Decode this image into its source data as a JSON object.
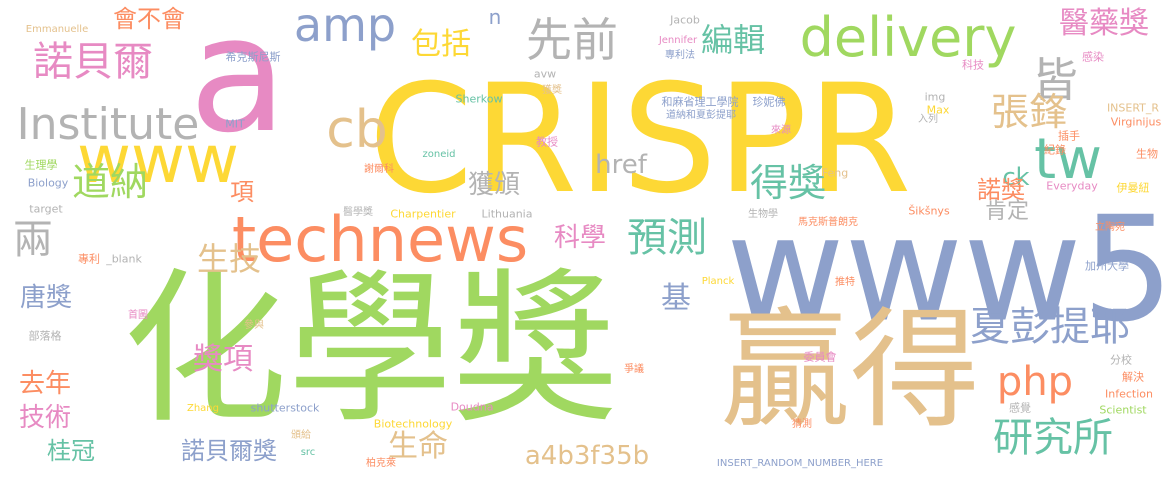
{
  "palette": {
    "yellow": "#fdd835",
    "green": "#a0d860",
    "tan": "#e4c18c",
    "blue": "#8da0cb",
    "orange": "#fc8d62",
    "pink": "#e78ac3",
    "teal": "#66c2a5",
    "gray": "#b3b3b3"
  },
  "words": [
    {
      "text": "CRISPR",
      "color": "yellow"
    },
    {
      "text": "化學獎",
      "color": "green"
    },
    {
      "text": "www5",
      "color": "blue"
    },
    {
      "text": "贏得",
      "color": "tan"
    },
    {
      "text": "technews",
      "color": "orange"
    },
    {
      "text": "a",
      "color": "pink"
    },
    {
      "text": "www",
      "color": "yellow"
    },
    {
      "text": "delivery",
      "color": "green"
    },
    {
      "text": "Institute",
      "color": "gray"
    },
    {
      "text": "amp",
      "color": "blue"
    },
    {
      "text": "tw",
      "color": "teal"
    },
    {
      "text": "先前",
      "color": "gray"
    },
    {
      "text": "皆",
      "color": "gray"
    },
    {
      "text": "cb",
      "color": "tan"
    },
    {
      "text": "諾貝爾",
      "color": "pink"
    },
    {
      "text": "道納",
      "color": "green"
    },
    {
      "text": "兩",
      "color": "gray"
    },
    {
      "text": "預測",
      "color": "teal"
    },
    {
      "text": "得獎",
      "color": "teal"
    },
    {
      "text": "張鋒",
      "color": "tan"
    },
    {
      "text": "夏彭提耶",
      "color": "blue"
    },
    {
      "text": "php",
      "color": "orange"
    },
    {
      "text": "研究所",
      "color": "teal"
    },
    {
      "text": "醫藥獎",
      "color": "pink"
    },
    {
      "text": "編輯",
      "color": "teal"
    },
    {
      "text": "包括",
      "color": "yellow"
    },
    {
      "text": "會不會",
      "color": "orange"
    },
    {
      "text": "n",
      "color": "blue"
    },
    {
      "text": "科學",
      "color": "pink"
    },
    {
      "text": "獲頒",
      "color": "gray"
    },
    {
      "text": "href",
      "color": "gray"
    },
    {
      "text": "ck",
      "color": "teal"
    },
    {
      "text": "諾獎",
      "color": "orange"
    },
    {
      "text": "肯定",
      "color": "gray"
    },
    {
      "text": "生技",
      "color": "tan"
    },
    {
      "text": "唐獎",
      "color": "blue"
    },
    {
      "text": "獎項",
      "color": "pink"
    },
    {
      "text": "項",
      "color": "orange"
    },
    {
      "text": "基",
      "color": "blue"
    },
    {
      "text": "去年",
      "color": "orange"
    },
    {
      "text": "技術",
      "color": "pink"
    },
    {
      "text": "桂冠",
      "color": "teal"
    },
    {
      "text": "諾貝爾獎",
      "color": "blue"
    },
    {
      "text": "生命",
      "color": "tan"
    },
    {
      "text": "a4b3f35b",
      "color": "tan"
    },
    {
      "text": "Emmanuelle",
      "color": "tan"
    },
    {
      "text": "希克斯尼斯",
      "color": "blue"
    },
    {
      "text": "Jacob",
      "color": "gray"
    },
    {
      "text": "Jennifer",
      "color": "pink"
    },
    {
      "text": "專利法",
      "color": "blue"
    },
    {
      "text": "感染",
      "color": "pink"
    },
    {
      "text": "科技",
      "color": "pink"
    },
    {
      "text": "avw",
      "color": "gray"
    },
    {
      "text": "獲獎",
      "color": "tan"
    },
    {
      "text": "Sherkow",
      "color": "teal"
    },
    {
      "text": "和麻省理工學院",
      "color": "blue"
    },
    {
      "text": "珍妮佛",
      "color": "blue"
    },
    {
      "text": "img",
      "color": "gray"
    },
    {
      "text": "Max",
      "color": "yellow"
    },
    {
      "text": "INSERT_R",
      "color": "tan"
    },
    {
      "text": "MIT",
      "color": "blue"
    },
    {
      "text": "道納和夏彭提耶",
      "color": "blue"
    },
    {
      "text": "入列",
      "color": "gray"
    },
    {
      "text": "Virginijus",
      "color": "orange"
    },
    {
      "text": "教授",
      "color": "pink"
    },
    {
      "text": "來源",
      "color": "pink"
    },
    {
      "text": "插手",
      "color": "orange"
    },
    {
      "text": "生理學",
      "color": "green"
    },
    {
      "text": "zoneid",
      "color": "teal"
    },
    {
      "text": "紀錄",
      "color": "orange"
    },
    {
      "text": "生物",
      "color": "orange"
    },
    {
      "text": "謝爾科",
      "color": "orange"
    },
    {
      "text": "Feng",
      "color": "tan"
    },
    {
      "text": "Biology",
      "color": "blue"
    },
    {
      "text": "Everyday",
      "color": "pink"
    },
    {
      "text": "伊曼紐",
      "color": "yellow"
    },
    {
      "text": "target",
      "color": "gray"
    },
    {
      "text": "醫學獎",
      "color": "gray"
    },
    {
      "text": "Charpentier",
      "color": "yellow"
    },
    {
      "text": "Lithuania",
      "color": "gray"
    },
    {
      "text": "生物學",
      "color": "gray"
    },
    {
      "text": "馬克斯普朗克",
      "color": "orange"
    },
    {
      "text": "Šikšnys",
      "color": "orange"
    },
    {
      "text": "立陶宛",
      "color": "orange"
    },
    {
      "text": "專利",
      "color": "orange"
    },
    {
      "text": "_blank",
      "color": "gray"
    },
    {
      "text": "加州大學",
      "color": "blue"
    },
    {
      "text": "Planck",
      "color": "yellow"
    },
    {
      "text": "推特",
      "color": "orange"
    },
    {
      "text": "首圖",
      "color": "pink"
    },
    {
      "text": "參與",
      "color": "tan"
    },
    {
      "text": "部落格",
      "color": "gray"
    },
    {
      "text": "委員會",
      "color": "pink"
    },
    {
      "text": "分校",
      "color": "gray"
    },
    {
      "text": "解決",
      "color": "orange"
    },
    {
      "text": "爭議",
      "color": "orange"
    },
    {
      "text": "Zhang",
      "color": "yellow"
    },
    {
      "text": "shutterstock",
      "color": "blue"
    },
    {
      "text": "Doudna",
      "color": "pink"
    },
    {
      "text": "Infection",
      "color": "orange"
    },
    {
      "text": "Scientist",
      "color": "green"
    },
    {
      "text": "感覺",
      "color": "gray"
    },
    {
      "text": "Biotechnology",
      "color": "yellow"
    },
    {
      "text": "猜測",
      "color": "orange"
    },
    {
      "text": "頒給",
      "color": "tan"
    },
    {
      "text": "src",
      "color": "teal"
    },
    {
      "text": "柏克萊",
      "color": "orange"
    },
    {
      "text": "INSERT_RANDOM_NUMBER_HERE",
      "color": "blue"
    }
  ]
}
